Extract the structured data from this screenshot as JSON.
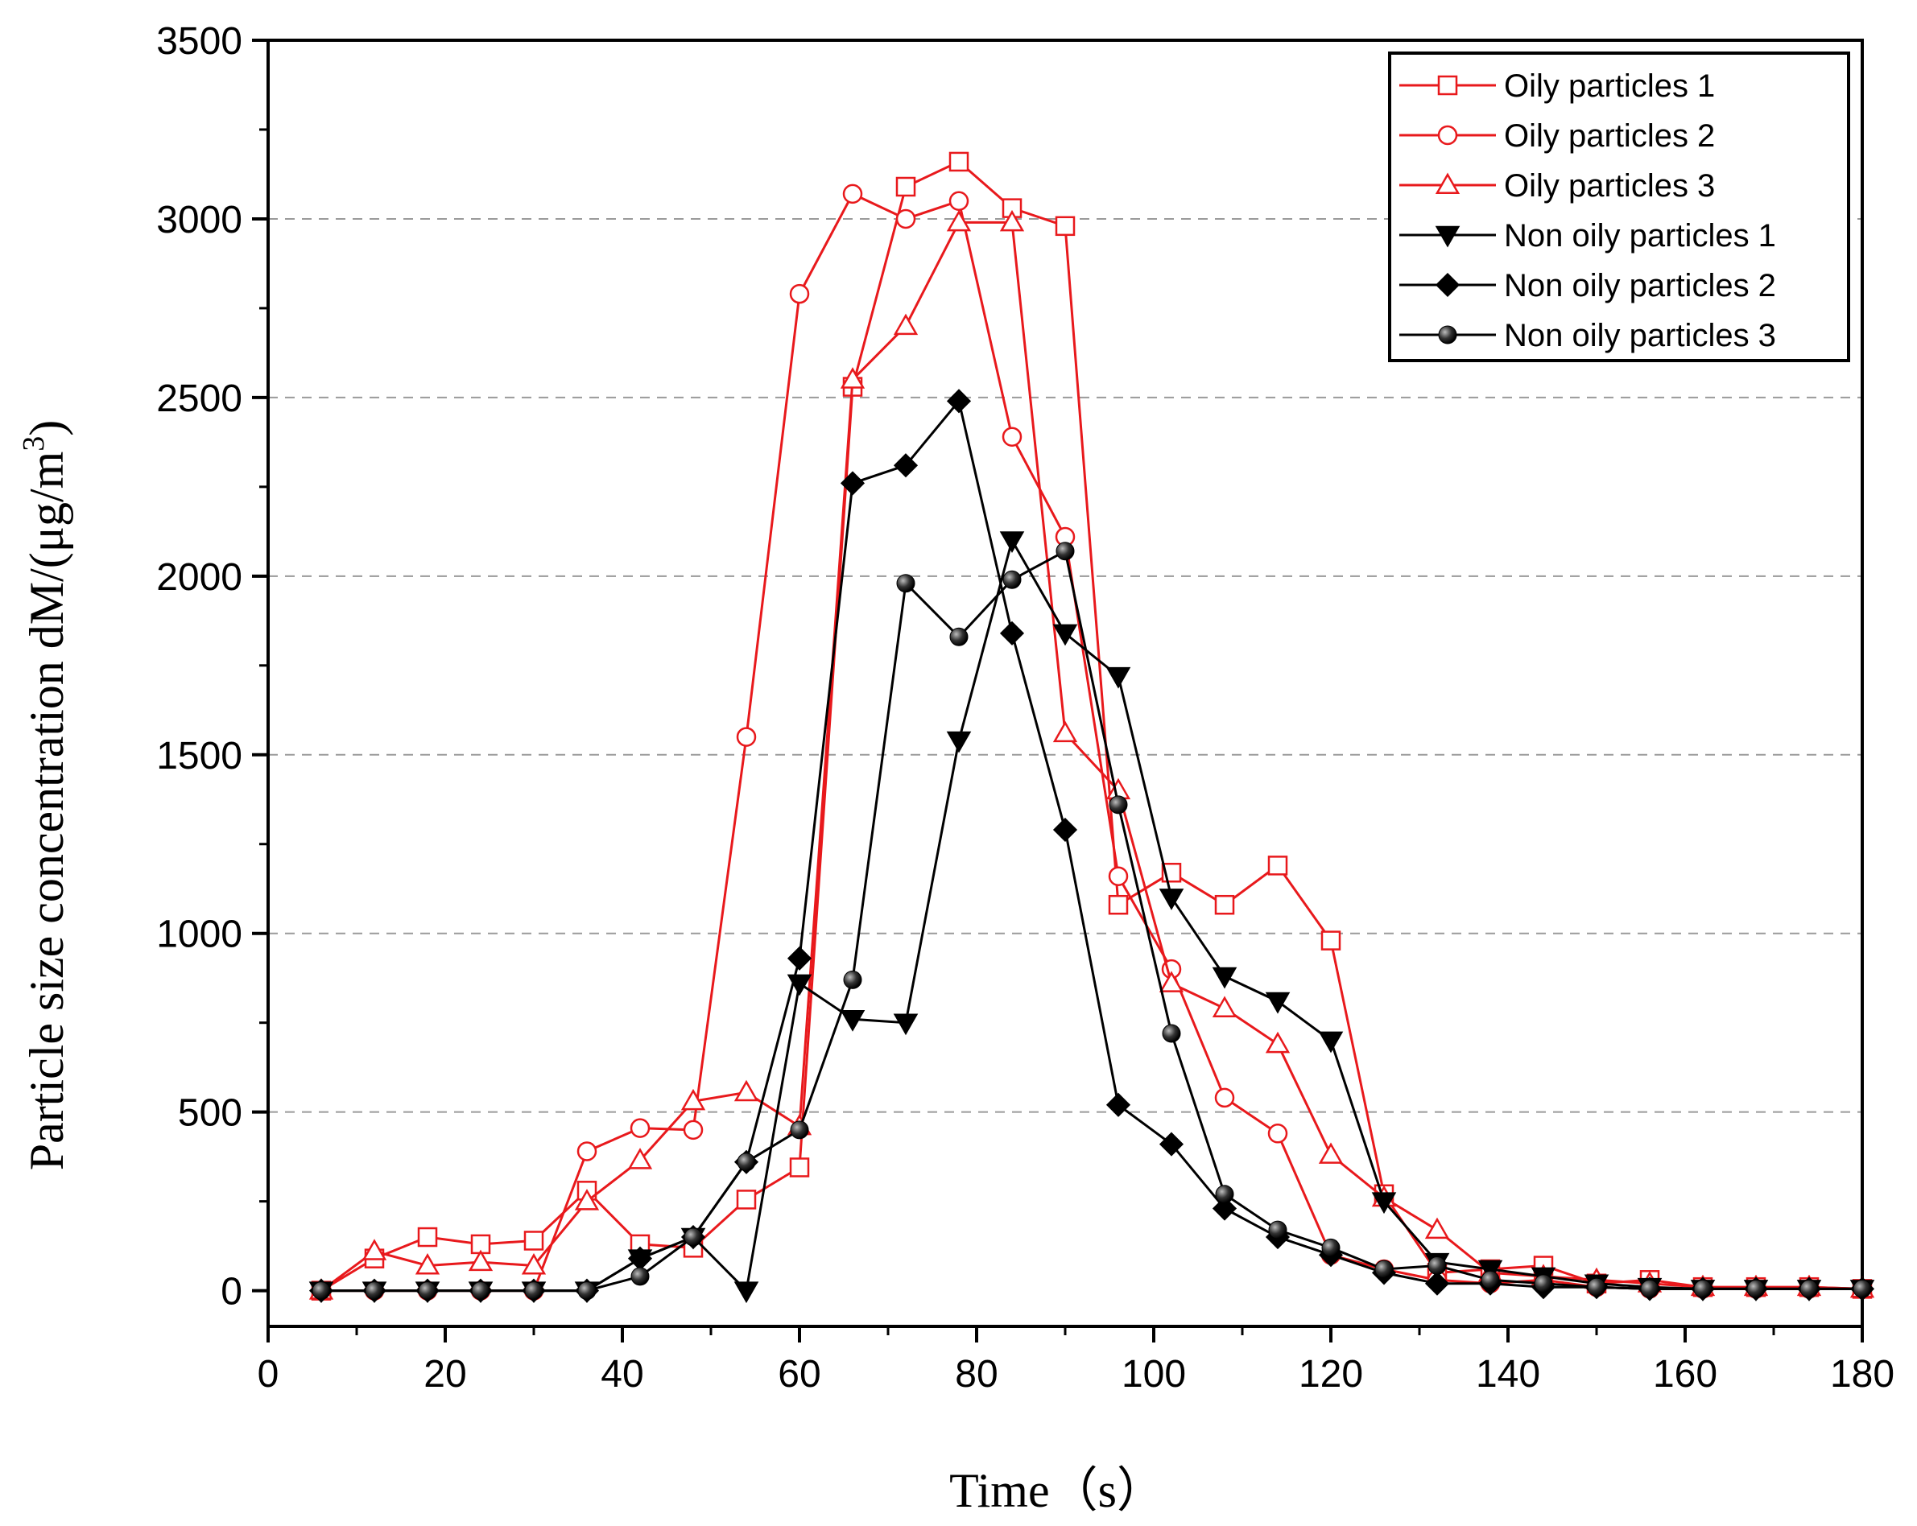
{
  "chart_data": {
    "type": "line",
    "xlabel": "Time（s）",
    "ylabel": "Particle size concentration dM/(μg/m",
    "ylabel_sup": "3",
    "ylabel_end": ")",
    "xlim": [
      0,
      180
    ],
    "ylim": [
      -100,
      3500
    ],
    "xticks": [
      0,
      20,
      40,
      60,
      80,
      100,
      120,
      140,
      160,
      180
    ],
    "yticks": [
      0,
      500,
      1000,
      1500,
      2000,
      2500,
      3000,
      3500
    ],
    "grid": "horizontal dashed",
    "legend_position": "top-right",
    "x": [
      6,
      12,
      18,
      24,
      30,
      36,
      42,
      48,
      54,
      60,
      66,
      72,
      78,
      84,
      90,
      96,
      102,
      108,
      114,
      120,
      126,
      132,
      138,
      144,
      150,
      156,
      162,
      168,
      174,
      180
    ],
    "series": [
      {
        "name": "Oily particles 1",
        "color": "#e8191c",
        "marker": "square",
        "values": [
          0,
          90,
          150,
          130,
          140,
          280,
          130,
          120,
          255,
          345,
          2530,
          3090,
          3160,
          3030,
          2980,
          1080,
          1170,
          1080,
          1190,
          980,
          270,
          50,
          60,
          70,
          20,
          30,
          10,
          10,
          10,
          5
        ]
      },
      {
        "name": "Oily particles 2",
        "color": "#e8191c",
        "marker": "circle",
        "values": [
          0,
          0,
          0,
          0,
          0,
          390,
          455,
          450,
          1550,
          2790,
          3070,
          3000,
          3050,
          2390,
          2110,
          1160,
          900,
          540,
          440,
          100,
          60,
          30,
          20,
          30,
          10,
          5,
          5,
          5,
          5,
          5
        ]
      },
      {
        "name": "Oily particles 3",
        "color": "#e8191c",
        "marker": "triangle-up",
        "values": [
          0,
          110,
          70,
          80,
          70,
          250,
          365,
          530,
          555,
          460,
          2550,
          2700,
          2990,
          2990,
          1560,
          1400,
          860,
          790,
          690,
          380,
          260,
          170,
          50,
          40,
          30,
          20,
          10,
          10,
          10,
          5
        ]
      },
      {
        "name": "Non oily particles 1",
        "color": "#000000",
        "marker": "triangle-down",
        "values": [
          0,
          0,
          0,
          0,
          0,
          0,
          90,
          150,
          0,
          860,
          760,
          750,
          1540,
          2100,
          1840,
          1720,
          1100,
          880,
          810,
          700,
          250,
          80,
          60,
          40,
          20,
          10,
          5,
          5,
          5,
          5
        ]
      },
      {
        "name": "Non oily particles 2",
        "color": "#000000",
        "marker": "diamond",
        "values": [
          0,
          0,
          0,
          0,
          0,
          0,
          90,
          150,
          360,
          930,
          2260,
          2310,
          2490,
          1840,
          1290,
          520,
          410,
          230,
          150,
          100,
          50,
          20,
          20,
          10,
          10,
          5,
          5,
          5,
          5,
          5
        ]
      },
      {
        "name": "Non oily particles 3",
        "color": "#000000",
        "marker": "ball",
        "values": [
          0,
          0,
          0,
          0,
          0,
          0,
          40,
          150,
          360,
          450,
          870,
          1980,
          1830,
          1990,
          2070,
          1360,
          720,
          270,
          170,
          120,
          60,
          70,
          30,
          20,
          10,
          5,
          5,
          5,
          5,
          5
        ]
      }
    ]
  }
}
